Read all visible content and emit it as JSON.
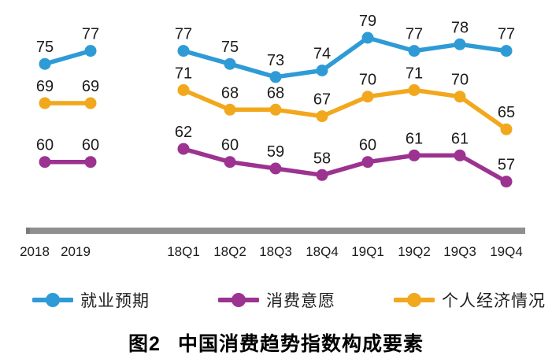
{
  "caption": {
    "label": "图2",
    "title": "中国消费趋势指数构成要素"
  },
  "chart_data": {
    "type": "line",
    "title": "图2 中国消费趋势指数构成要素",
    "ylim": [
      55,
      81
    ],
    "grid": false,
    "legend_position": "bottom",
    "axis_bar_color": "#8f8f8f",
    "label_color": "#1c1c1c",
    "panels": [
      {
        "name": "annual",
        "categories": [
          "2018",
          "2019"
        ],
        "series": [
          {
            "name": "就业预期",
            "color": "#2e9bd6",
            "values": [
              75,
              77
            ]
          },
          {
            "name": "个人经济情况",
            "color": "#f2a81d",
            "values": [
              69,
              69
            ]
          },
          {
            "name": "消费意愿",
            "color": "#9c3390",
            "values": [
              60,
              60
            ]
          }
        ]
      },
      {
        "name": "quarterly",
        "categories": [
          "18Q1",
          "18Q2",
          "18Q3",
          "18Q4",
          "19Q1",
          "19Q2",
          "19Q3",
          "19Q4"
        ],
        "series": [
          {
            "name": "就业预期",
            "color": "#2e9bd6",
            "values": [
              77,
              75,
              73,
              74,
              79,
              77,
              78,
              77
            ]
          },
          {
            "name": "个人经济情况",
            "color": "#f2a81d",
            "values": [
              71,
              68,
              68,
              67,
              70,
              71,
              70,
              65
            ]
          },
          {
            "name": "消费意愿",
            "color": "#9c3390",
            "values": [
              62,
              60,
              59,
              58,
              60,
              61,
              61,
              57
            ]
          }
        ]
      }
    ],
    "legend": [
      {
        "name": "就业预期",
        "color": "#2e9bd6"
      },
      {
        "name": "消费意愿",
        "color": "#9c3390"
      },
      {
        "name": "个人经济情况",
        "color": "#f2a81d"
      }
    ]
  }
}
